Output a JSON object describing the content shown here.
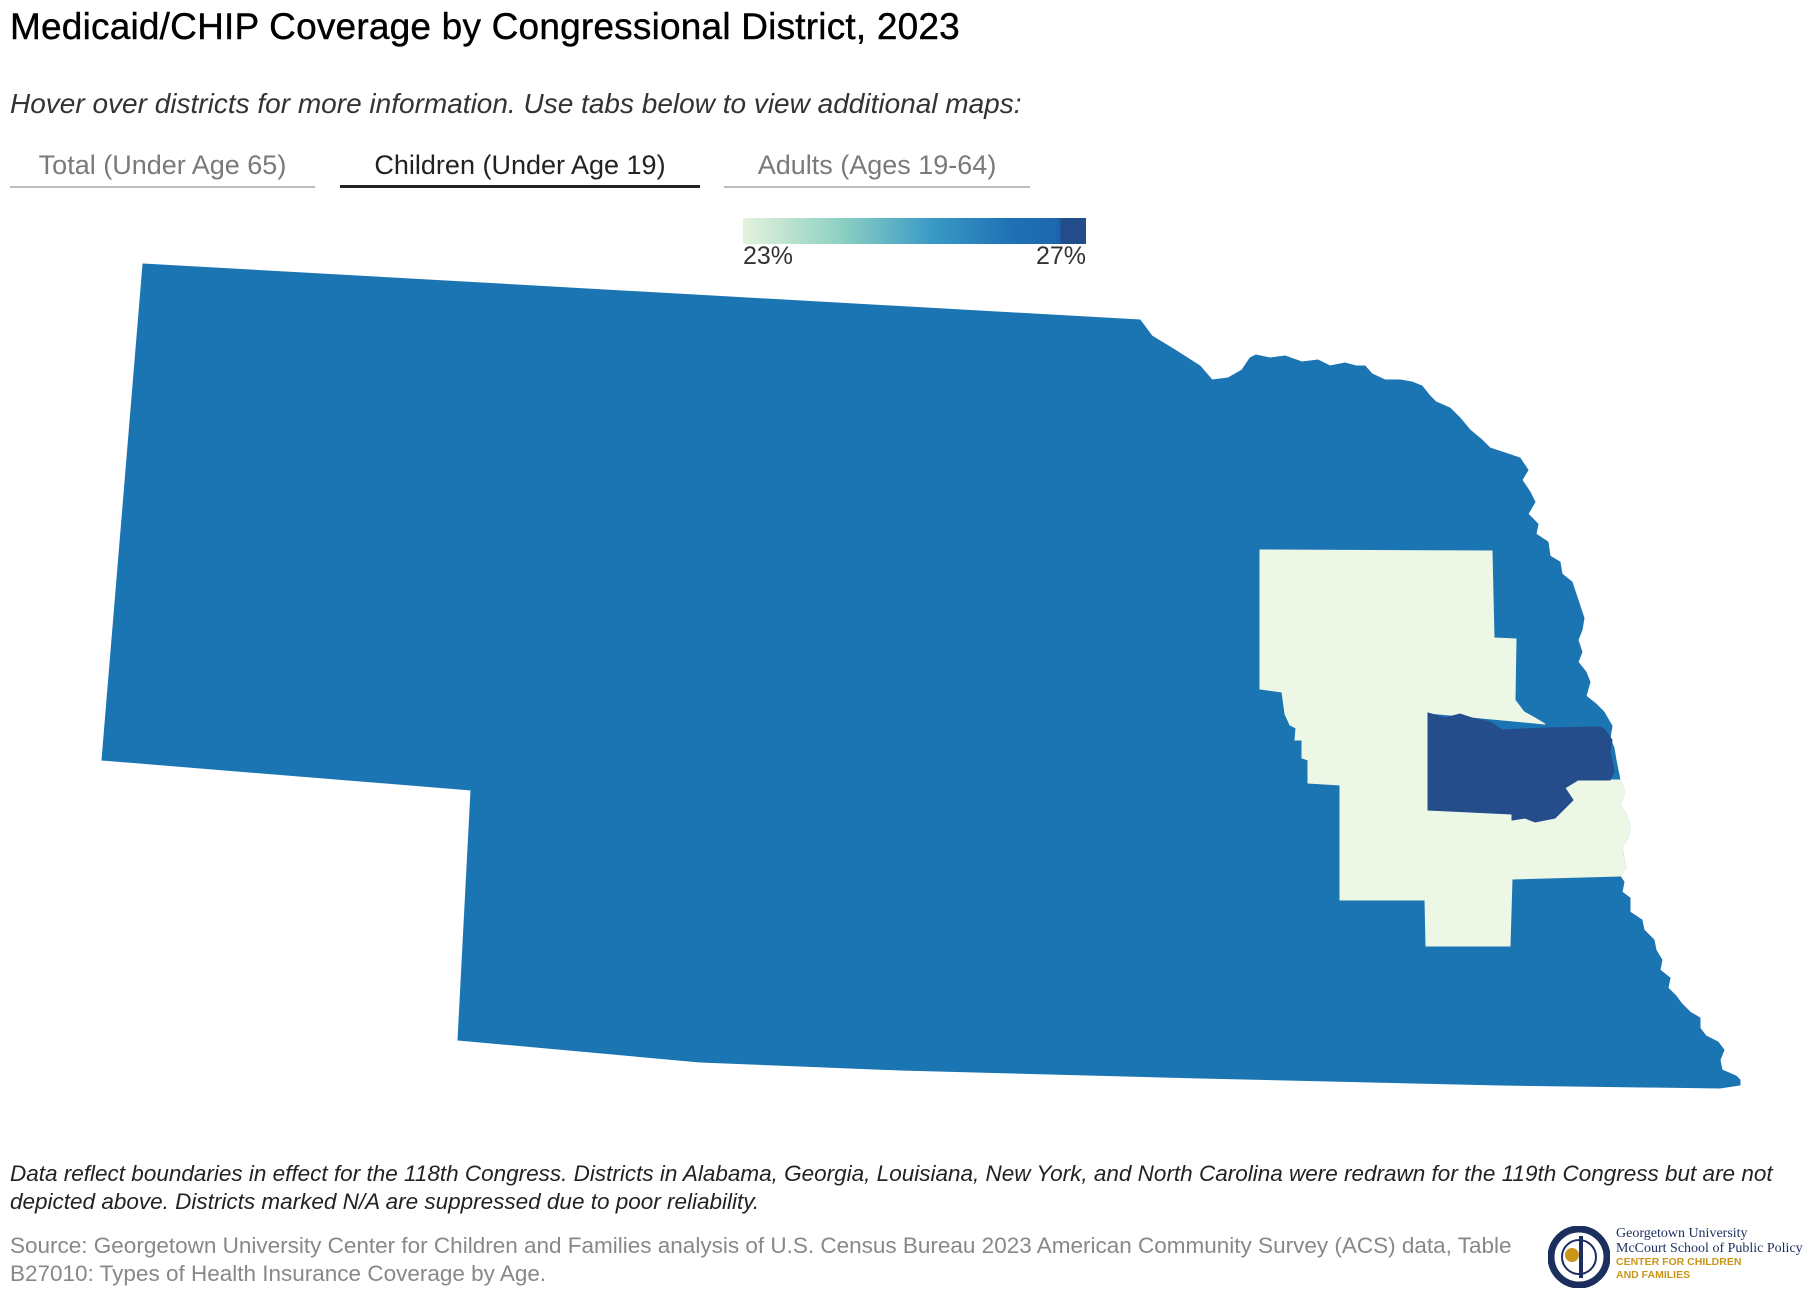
{
  "header": {
    "title": "Medicaid/CHIP Coverage by Congressional District, 2023",
    "subtitle": "Hover over districts for more information. Use tabs below to view additional maps:"
  },
  "tabs": [
    {
      "label": "Total (Under Age 65)",
      "active": false
    },
    {
      "label": "Children (Under Age 19)",
      "active": true
    },
    {
      "label": "Adults (Ages 19-64)",
      "active": false
    }
  ],
  "legend": {
    "min_label": "23%",
    "max_label": "27%",
    "scale_colors": [
      "#e4f3dc",
      "#8fd1c2",
      "#3a9ac6",
      "#1f72b4",
      "#234c8b"
    ]
  },
  "map": {
    "state": "Nebraska",
    "districts": [
      {
        "id": "NE-3",
        "color": "#1c75b3"
      },
      {
        "id": "NE-1",
        "color": "#edf7e6"
      },
      {
        "id": "NE-2",
        "color": "#254c8b"
      }
    ]
  },
  "footer": {
    "note": "Data reflect boundaries in effect for the 118th Congress. Districts in Alabama, Georgia, Louisiana, New York, and North Carolina were redrawn for the 119th Congress but are not depicted above. Districts marked N/A are suppressed due to poor reliability.",
    "source": "Source: Georgetown University Center for Children and Families analysis of U.S. Census Bureau 2023 American Community Survey (ACS) data, Table B27010: Types of Health Insurance Coverage by Age."
  },
  "logo": {
    "line1": "Georgetown University",
    "line2": "McCourt School of Public Policy",
    "line3": "CENTER FOR CHILDREN",
    "line4": "AND FAMILIES",
    "colors": {
      "navy": "#1c2e5e",
      "gold": "#c9961a"
    }
  }
}
